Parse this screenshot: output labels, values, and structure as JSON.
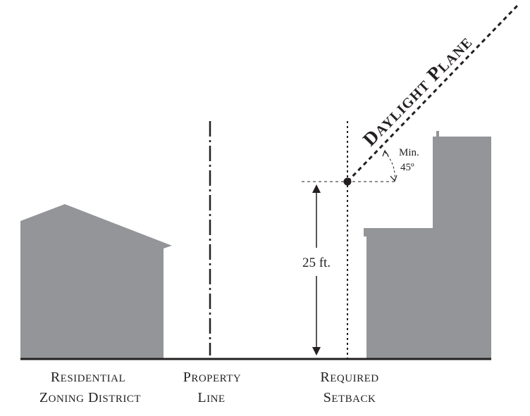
{
  "diagram": {
    "daylight_plane_label": "Daylight Plane",
    "angle_label_line1": "Min.",
    "angle_label_line2": "45º",
    "height_label": "25 ft.",
    "captions": {
      "residential": [
        "Residential",
        "Zoning District"
      ],
      "property_line": [
        "Property",
        "Line"
      ],
      "setback": [
        "Required",
        "Setback"
      ]
    },
    "colors": {
      "building_fill": "#939598",
      "ink": "#231f20",
      "background": "#ffffff"
    }
  }
}
